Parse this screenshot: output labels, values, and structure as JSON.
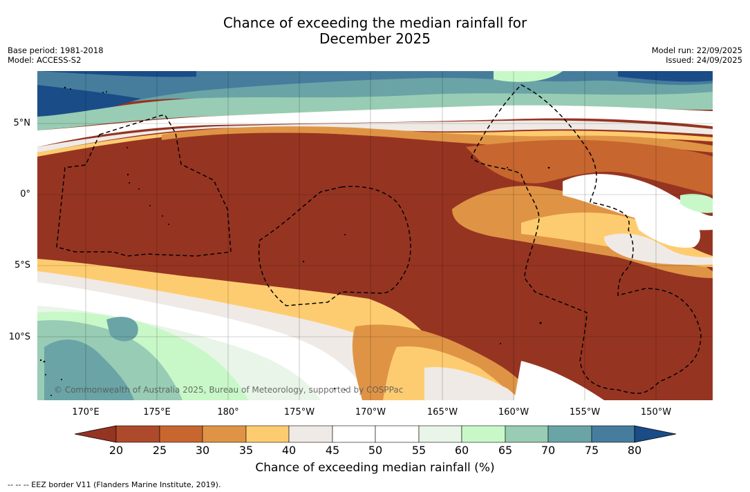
{
  "header": {
    "title_line1": "Chance of exceeding the median rainfall for",
    "title_line2": "December 2025",
    "base_period": "Base period: 1981-2018",
    "model": "Model: ACCESS-S2",
    "model_run": "Model run: 22/09/2025",
    "issued": "Issued: 24/09/2025"
  },
  "map": {
    "lat_labels": [
      "5°N",
      "0°",
      "5°S",
      "10°S"
    ],
    "lon_labels": [
      "170°E",
      "175°E",
      "180°",
      "175°W",
      "170°W",
      "165°W",
      "160°W",
      "155°W",
      "150°W"
    ],
    "credit": "© Commonwealth of Australia 2025, Bureau of Meteorology, supported by COSPPac"
  },
  "colorbar": {
    "title": "Chance of exceeding median rainfall (%)",
    "ticks": [
      "20",
      "25",
      "30",
      "35",
      "40",
      "45",
      "50",
      "55",
      "60",
      "65",
      "70",
      "75",
      "80"
    ],
    "colors": [
      "#963422",
      "#ad4a2c",
      "#c7662f",
      "#df9445",
      "#fecc70",
      "#efeae6",
      "#ffffff",
      "#ffffff",
      "#e8f5e8",
      "#c8f8c8",
      "#98ccb4",
      "#6aa4a6",
      "#467d9c",
      "#1a4c88"
    ]
  },
  "footnote": "--  --  -- EEZ border V11 (Flanders Marine Institute, 2019)."
}
